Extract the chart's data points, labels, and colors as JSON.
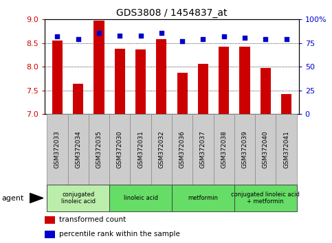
{
  "title": "GDS3808 / 1454837_at",
  "samples": [
    "GSM372033",
    "GSM372034",
    "GSM372035",
    "GSM372030",
    "GSM372031",
    "GSM372032",
    "GSM372036",
    "GSM372037",
    "GSM372038",
    "GSM372039",
    "GSM372040",
    "GSM372041"
  ],
  "bar_values": [
    8.56,
    7.65,
    8.98,
    8.38,
    8.37,
    8.58,
    7.87,
    8.06,
    8.43,
    8.42,
    7.97,
    7.43
  ],
  "percentile_values": [
    82,
    79,
    86,
    83,
    83,
    86,
    77,
    79,
    82,
    81,
    79,
    79
  ],
  "bar_color": "#CC0000",
  "dot_color": "#0000CC",
  "ymin": 7.0,
  "ymax": 9.0,
  "y2min": 0,
  "y2max": 100,
  "yticks": [
    7.0,
    7.5,
    8.0,
    8.5,
    9.0
  ],
  "y2ticks": [
    0,
    25,
    50,
    75,
    100
  ],
  "y2ticklabels": [
    "0",
    "25",
    "50",
    "75",
    "100%"
  ],
  "groups": [
    {
      "label": "conjugated\nlinoleic acid",
      "start": 0,
      "end": 3,
      "color": "#bbeeaa"
    },
    {
      "label": "linoleic acid",
      "start": 3,
      "end": 6,
      "color": "#66dd66"
    },
    {
      "label": "metformin",
      "start": 6,
      "end": 9,
      "color": "#66dd66"
    },
    {
      "label": "conjugated linoleic acid\n+ metformin",
      "start": 9,
      "end": 12,
      "color": "#66dd66"
    }
  ],
  "agent_label": "agent",
  "legend1_label": "transformed count",
  "legend2_label": "percentile rank within the sample",
  "bar_width": 0.5,
  "sample_box_color": "#cccccc",
  "bg_color": "#ffffff"
}
